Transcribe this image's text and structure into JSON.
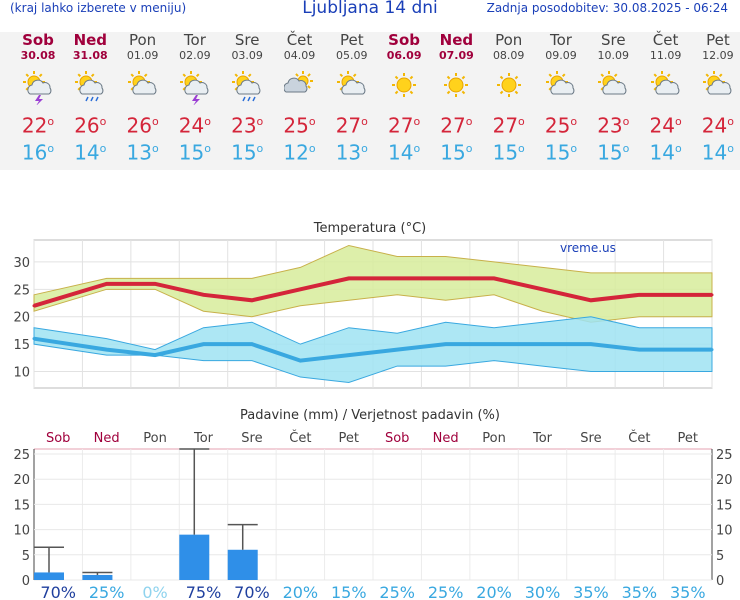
{
  "header": {
    "menu_hint": "(kraj lahko izberete v meniju)",
    "title": "Ljubljana 14 dni",
    "updated": "Zadnja posodobitev: 30.08.2025 - 06:24"
  },
  "days": [
    {
      "name": "Sob",
      "date": "30.08",
      "weekend": true,
      "icon": "sun-cloud-thunderstorm-icon",
      "tmax": "22",
      "tmin": "16"
    },
    {
      "name": "Ned",
      "date": "31.08",
      "weekend": true,
      "icon": "sun-cloud-rain-icon",
      "tmax": "26",
      "tmin": "14"
    },
    {
      "name": "Pon",
      "date": "01.09",
      "weekend": false,
      "icon": "sun-cloud-icon",
      "tmax": "26",
      "tmin": "13"
    },
    {
      "name": "Tor",
      "date": "02.09",
      "weekend": false,
      "icon": "sun-cloud-thunderstorm-icon",
      "tmax": "24",
      "tmin": "15"
    },
    {
      "name": "Sre",
      "date": "03.09",
      "weekend": false,
      "icon": "sun-cloud-rain-icon",
      "tmax": "23",
      "tmin": "15"
    },
    {
      "name": "Čet",
      "date": "04.09",
      "weekend": false,
      "icon": "cloud-sun-icon",
      "tmax": "25",
      "tmin": "12"
    },
    {
      "name": "Pet",
      "date": "05.09",
      "weekend": false,
      "icon": "sun-cloud-icon",
      "tmax": "27",
      "tmin": "13"
    },
    {
      "name": "Sob",
      "date": "06.09",
      "weekend": true,
      "icon": "sun-icon",
      "tmax": "27",
      "tmin": "14"
    },
    {
      "name": "Ned",
      "date": "07.09",
      "weekend": true,
      "icon": "sun-icon",
      "tmax": "27",
      "tmin": "15"
    },
    {
      "name": "Pon",
      "date": "08.09",
      "weekend": false,
      "icon": "sun-icon",
      "tmax": "27",
      "tmin": "15"
    },
    {
      "name": "Tor",
      "date": "09.09",
      "weekend": false,
      "icon": "sun-cloud-icon",
      "tmax": "25",
      "tmin": "15"
    },
    {
      "name": "Sre",
      "date": "10.09",
      "weekend": false,
      "icon": "sun-cloud-icon",
      "tmax": "23",
      "tmin": "15"
    },
    {
      "name": "Čet",
      "date": "11.09",
      "weekend": false,
      "icon": "sun-cloud-icon",
      "tmax": "24",
      "tmin": "14"
    },
    {
      "name": "Pet",
      "date": "12.09",
      "weekend": false,
      "icon": "sun-cloud-icon",
      "tmax": "24",
      "tmin": "14"
    }
  ],
  "colors": {
    "max": "#d4253a",
    "min": "#39a8e0",
    "weekend": "#a0003c",
    "rain_bar": "#2f8fe8",
    "max_band": "#d7ec9b",
    "min_band": "#9fe3f2"
  },
  "chart_data": [
    {
      "type": "line",
      "title": "Temperatura (°C)",
      "watermark": "vreme.us",
      "ylim": [
        7,
        34
      ],
      "yticks": [
        10,
        15,
        20,
        25,
        30
      ],
      "series": [
        {
          "values": [
            22,
            26,
            26,
            24,
            23,
            25,
            27,
            27,
            27,
            27,
            25,
            23,
            24,
            24
          ],
          "band_low": [
            21,
            25,
            25,
            21,
            20,
            22,
            23,
            24,
            23,
            24,
            21,
            19,
            20,
            20
          ],
          "band_high": [
            24,
            27,
            27,
            27,
            27,
            29,
            33,
            31,
            31,
            30,
            29,
            28,
            28,
            28
          ]
        },
        {
          "values": [
            16,
            14,
            13,
            15,
            15,
            12,
            13,
            14,
            15,
            15,
            15,
            15,
            14,
            14
          ],
          "band_low": [
            15,
            13,
            13,
            12,
            12,
            9,
            8,
            11,
            11,
            12,
            11,
            10,
            10,
            10
          ],
          "band_high": [
            18,
            16,
            14,
            18,
            19,
            15,
            18,
            17,
            19,
            18,
            19,
            20,
            18,
            18
          ]
        }
      ]
    },
    {
      "type": "bar",
      "title": "Padavine (mm) / Verjetnost padavin (%)",
      "categories": [
        "Sob",
        "Ned",
        "Pon",
        "Tor",
        "Sre",
        "Čet",
        "Pet",
        "Sob",
        "Ned",
        "Pon",
        "Tor",
        "Sre",
        "Čet",
        "Pet"
      ],
      "ylim": [
        0,
        26
      ],
      "yticks": [
        0,
        5,
        10,
        15,
        20,
        25
      ],
      "values": [
        1.5,
        1,
        0,
        9,
        6,
        0,
        0,
        0,
        0,
        0,
        0,
        0,
        0,
        0
      ],
      "range_high": [
        6.5,
        1.5,
        0,
        26,
        11,
        0,
        0,
        0,
        0,
        0,
        0,
        0,
        0,
        0
      ],
      "probability": [
        "70%",
        "25%",
        "0%",
        "75%",
        "70%",
        "20%",
        "15%",
        "25%",
        "25%",
        "20%",
        "30%",
        "35%",
        "35%",
        "35%"
      ]
    }
  ]
}
